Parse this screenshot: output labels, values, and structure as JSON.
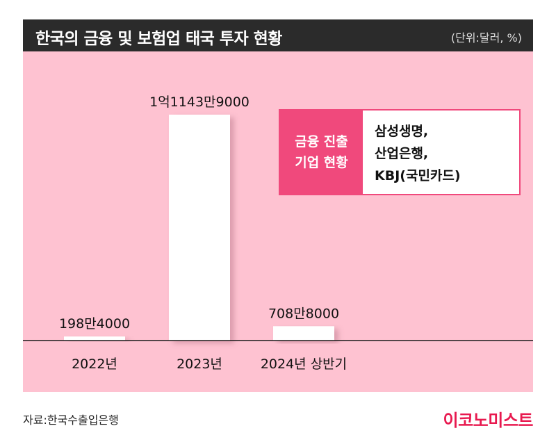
{
  "header": {
    "title": "한국의 금융 및 보험업 태국 투자 현황",
    "unit": "(단위:달러, %)"
  },
  "legend": {
    "label_lines": [
      "금융 진출",
      "기업 현황"
    ],
    "companies": [
      "삼성생명,",
      "산업은행,",
      "KBJ(국민카드)"
    ]
  },
  "footer": {
    "source": "자료:한국수출입은행",
    "logo": "이코노미스트"
  },
  "colors": {
    "background_panel": "#fec2d1",
    "header": "#2b2b2b",
    "accent": "#f0497c",
    "bar": "#ffffff"
  },
  "chart_data": {
    "type": "bar",
    "categories": [
      "2022년",
      "2023년",
      "2024년 상반기"
    ],
    "values": [
      1984000,
      111439000,
      7088000
    ],
    "data_labels": [
      "198만4000",
      "1억1143만9000",
      "708만8000"
    ],
    "ylim": [
      0,
      120000000
    ],
    "grid": false
  }
}
